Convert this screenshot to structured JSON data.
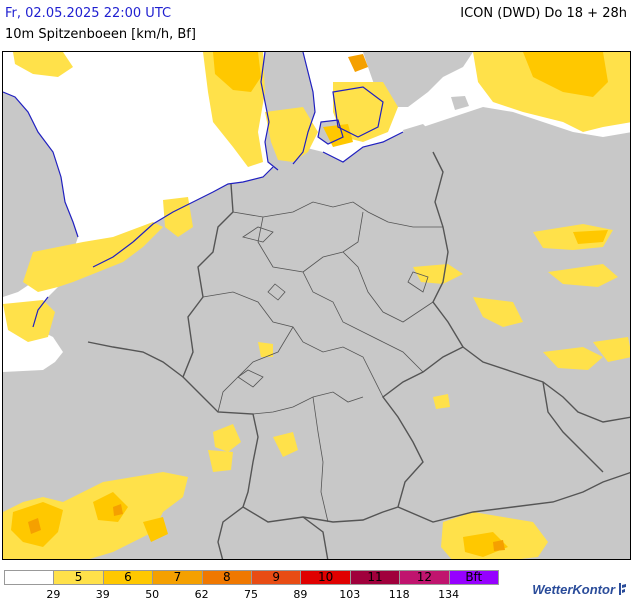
{
  "header": {
    "datetime": "Fr, 02.05.2025 22:00 UTC",
    "parameter": "10m Spitzenboeen [km/h, Bf]",
    "model": "ICON (DWD) Do 18 + 28h"
  },
  "legend": {
    "swatches": [
      {
        "label": "",
        "color": "#ffffff"
      },
      {
        "label": "5",
        "color": "#ffe14a"
      },
      {
        "label": "6",
        "color": "#ffc800"
      },
      {
        "label": "7",
        "color": "#f5a000"
      },
      {
        "label": "8",
        "color": "#f07800"
      },
      {
        "label": "9",
        "color": "#e84c14"
      },
      {
        "label": "10",
        "color": "#e00000"
      },
      {
        "label": "11",
        "color": "#a0003c"
      },
      {
        "label": "12",
        "color": "#c0146e"
      },
      {
        "label": "Bft",
        "color": "#9600ff"
      }
    ],
    "ticks": [
      "29",
      "39",
      "50",
      "62",
      "75",
      "89",
      "103",
      "118",
      "134"
    ]
  },
  "brand": {
    "name": "WetterKontor"
  },
  "colors": {
    "sea": "#ffffff",
    "land": "#c8c8c8",
    "bft5": "#ffe14a",
    "bft6": "#ffc800",
    "bft7": "#f5a000",
    "coast": "#2020c0",
    "border": "#555555"
  }
}
